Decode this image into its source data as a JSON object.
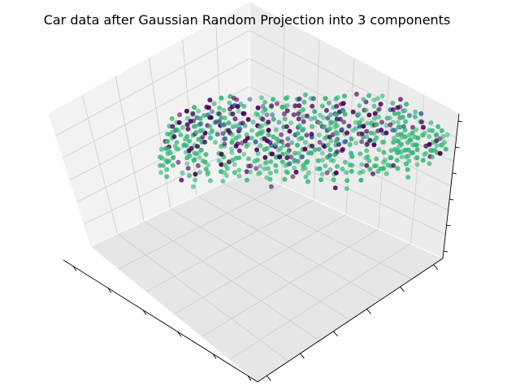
{
  "chart_data": {
    "type": "scatter",
    "projection": "3d",
    "title": "Car data after Gaussian Random Projection into 3 components",
    "xlabel": "",
    "ylabel": "",
    "zlabel": "",
    "grid": true,
    "tick_labels_shown": false,
    "colormap": "viridis",
    "series": [
      {
        "color": "#440154"
      },
      {
        "color": "#31688e"
      },
      {
        "color": "#35b779"
      },
      {
        "color": "#fde725"
      }
    ]
  }
}
